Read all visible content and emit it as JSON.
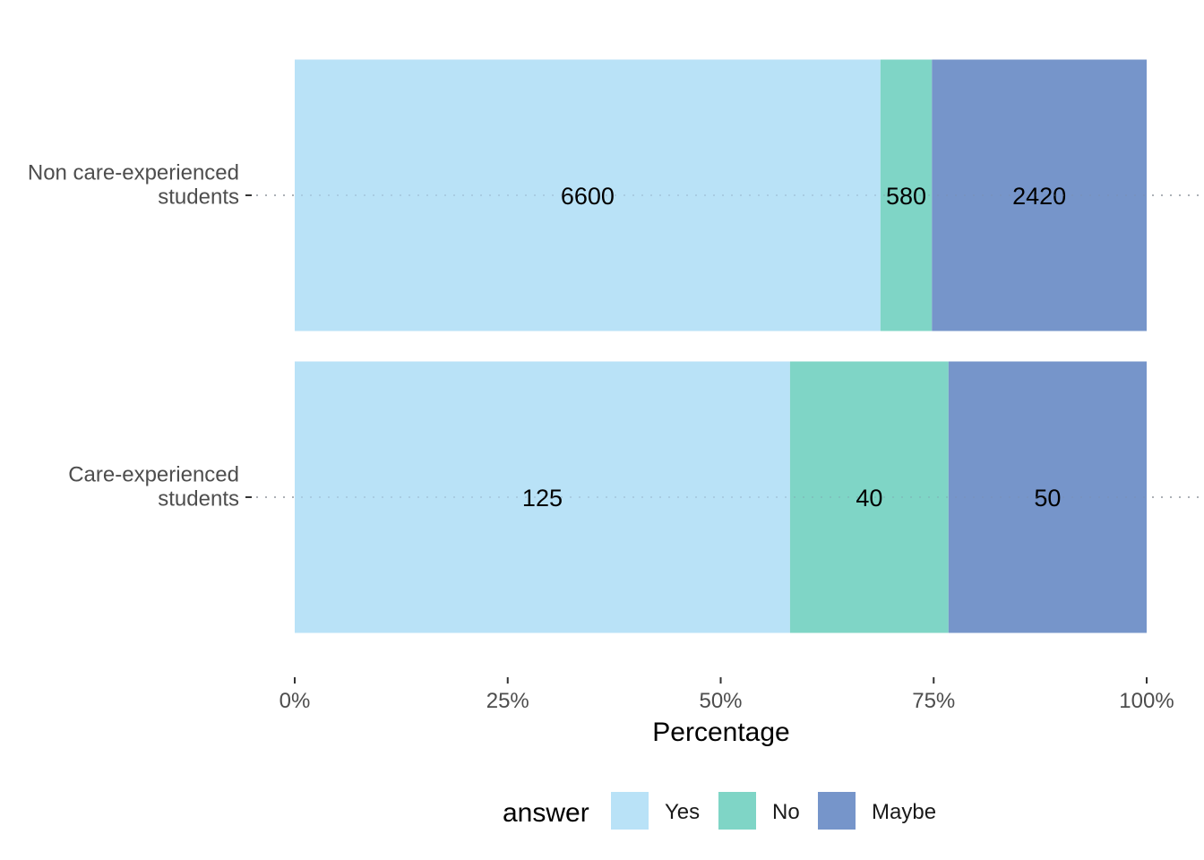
{
  "chart_data": {
    "type": "bar",
    "orientation": "horizontal",
    "stacked": "percent",
    "categories": [
      [
        "Care-experienced",
        "students"
      ],
      [
        "Non care-experienced",
        "students"
      ]
    ],
    "series": [
      {
        "name": "Yes",
        "values": [
          125,
          6600
        ],
        "color": "#b9e2f7"
      },
      {
        "name": "No",
        "values": [
          40,
          580
        ],
        "color": "#7fd5c6"
      },
      {
        "name": "Maybe",
        "values": [
          50,
          2420
        ],
        "color": "#7695ca"
      }
    ],
    "xlabel": "Percentage",
    "ylabel": "",
    "xlim": [
      0,
      100
    ],
    "xticks": [
      "0%",
      "25%",
      "50%",
      "75%",
      "100%"
    ],
    "legend_title": "answer",
    "legend_position": "bottom",
    "grid": "dotted horizontal"
  }
}
